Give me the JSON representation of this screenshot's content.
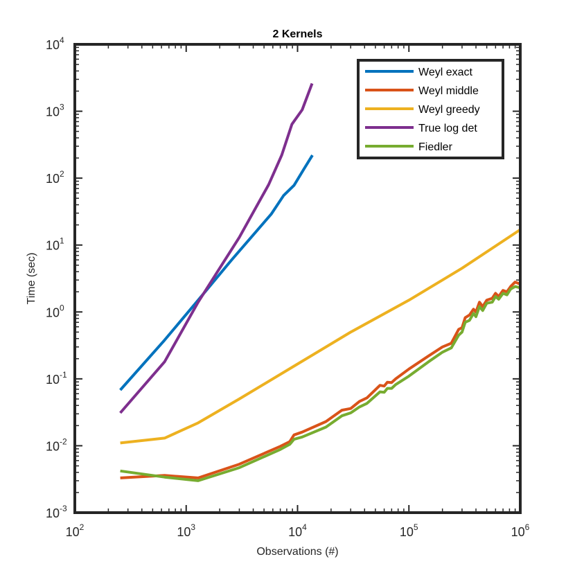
{
  "chart_data": {
    "type": "line",
    "title": "2 Kernels",
    "xlabel": "Observations (#)",
    "ylabel": "Time (sec)",
    "xscale": "log",
    "yscale": "log",
    "xlim": [
      100,
      1000000
    ],
    "ylim": [
      0.001,
      10000
    ],
    "legend_position": "top-right",
    "x_ticks": [
      {
        "value": 100,
        "base": "10",
        "exp": "2"
      },
      {
        "value": 1000,
        "base": "10",
        "exp": "3"
      },
      {
        "value": 10000,
        "base": "10",
        "exp": "4"
      },
      {
        "value": 100000,
        "base": "10",
        "exp": "5"
      },
      {
        "value": 1000000,
        "base": "10",
        "exp": "6"
      }
    ],
    "y_ticks": [
      {
        "value": 0.001,
        "base": "10",
        "exp": "-3"
      },
      {
        "value": 0.01,
        "base": "10",
        "exp": "-2"
      },
      {
        "value": 0.1,
        "base": "10",
        "exp": "-1"
      },
      {
        "value": 1,
        "base": "10",
        "exp": "0"
      },
      {
        "value": 10,
        "base": "10",
        "exp": "1"
      },
      {
        "value": 100,
        "base": "10",
        "exp": "2"
      },
      {
        "value": 1000,
        "base": "10",
        "exp": "3"
      },
      {
        "value": 10000,
        "base": "10",
        "exp": "4"
      }
    ],
    "series": [
      {
        "name": "Weyl exact",
        "color": "#0072BD",
        "points": [
          [
            256,
            0.068
          ],
          [
            640,
            0.38
          ],
          [
            1280,
            1.5
          ],
          [
            2560,
            6.0
          ],
          [
            5800,
            29
          ],
          [
            7500,
            55
          ],
          [
            9300,
            78
          ],
          [
            11500,
            140
          ],
          [
            13600,
            220
          ]
        ]
      },
      {
        "name": "Weyl middle",
        "color": "#D95319",
        "points": [
          [
            256,
            0.0033
          ],
          [
            640,
            0.0036
          ],
          [
            1280,
            0.0033
          ],
          [
            3000,
            0.0053
          ],
          [
            7000,
            0.0098
          ],
          [
            8500,
            0.0115
          ],
          [
            9300,
            0.0145
          ],
          [
            11000,
            0.016
          ],
          [
            18000,
            0.023
          ],
          [
            25000,
            0.034
          ],
          [
            30000,
            0.036
          ],
          [
            36000,
            0.046
          ],
          [
            42000,
            0.052
          ],
          [
            55000,
            0.08
          ],
          [
            60000,
            0.078
          ],
          [
            64000,
            0.089
          ],
          [
            70000,
            0.088
          ],
          [
            76000,
            0.1
          ],
          [
            100000,
            0.14
          ],
          [
            150000,
            0.22
          ],
          [
            200000,
            0.3
          ],
          [
            240000,
            0.34
          ],
          [
            280000,
            0.55
          ],
          [
            300000,
            0.58
          ],
          [
            320000,
            0.82
          ],
          [
            350000,
            0.9
          ],
          [
            380000,
            1.1
          ],
          [
            400000,
            1.0
          ],
          [
            430000,
            1.4
          ],
          [
            460000,
            1.2
          ],
          [
            500000,
            1.5
          ],
          [
            560000,
            1.6
          ],
          [
            600000,
            1.9
          ],
          [
            640000,
            1.7
          ],
          [
            700000,
            2.1
          ],
          [
            760000,
            2.0
          ],
          [
            820000,
            2.4
          ],
          [
            900000,
            2.8
          ],
          [
            1000000,
            2.6
          ]
        ]
      },
      {
        "name": "Weyl greedy",
        "color": "#EDB120",
        "points": [
          [
            256,
            0.011
          ],
          [
            640,
            0.013
          ],
          [
            1280,
            0.022
          ],
          [
            3000,
            0.05
          ],
          [
            9000,
            0.15
          ],
          [
            30000,
            0.5
          ],
          [
            100000,
            1.5
          ],
          [
            300000,
            4.5
          ],
          [
            1000000,
            17
          ]
        ]
      },
      {
        "name": "True log det",
        "color": "#7E2F8E",
        "points": [
          [
            256,
            0.031
          ],
          [
            640,
            0.18
          ],
          [
            1280,
            1.4
          ],
          [
            2000,
            4.5
          ],
          [
            3000,
            13
          ],
          [
            5500,
            80
          ],
          [
            7200,
            220
          ],
          [
            8900,
            640
          ],
          [
            11000,
            1050
          ],
          [
            13500,
            2600
          ]
        ]
      },
      {
        "name": "Fiedler",
        "color": "#77AC30",
        "points": [
          [
            256,
            0.0042
          ],
          [
            640,
            0.0034
          ],
          [
            1280,
            0.003
          ],
          [
            3000,
            0.0047
          ],
          [
            7000,
            0.0088
          ],
          [
            8500,
            0.0105
          ],
          [
            9300,
            0.0125
          ],
          [
            11000,
            0.0135
          ],
          [
            18000,
            0.019
          ],
          [
            25000,
            0.028
          ],
          [
            30000,
            0.031
          ],
          [
            36000,
            0.038
          ],
          [
            42000,
            0.043
          ],
          [
            55000,
            0.064
          ],
          [
            60000,
            0.063
          ],
          [
            64000,
            0.072
          ],
          [
            70000,
            0.072
          ],
          [
            76000,
            0.082
          ],
          [
            100000,
            0.11
          ],
          [
            150000,
            0.18
          ],
          [
            200000,
            0.25
          ],
          [
            240000,
            0.29
          ],
          [
            280000,
            0.45
          ],
          [
            300000,
            0.5
          ],
          [
            320000,
            0.7
          ],
          [
            350000,
            0.75
          ],
          [
            380000,
            0.95
          ],
          [
            400000,
            0.85
          ],
          [
            430000,
            1.2
          ],
          [
            460000,
            1.05
          ],
          [
            500000,
            1.35
          ],
          [
            560000,
            1.4
          ],
          [
            600000,
            1.7
          ],
          [
            640000,
            1.55
          ],
          [
            700000,
            1.9
          ],
          [
            760000,
            1.8
          ],
          [
            820000,
            2.2
          ],
          [
            900000,
            2.4
          ],
          [
            1000000,
            2.3
          ]
        ]
      }
    ]
  }
}
